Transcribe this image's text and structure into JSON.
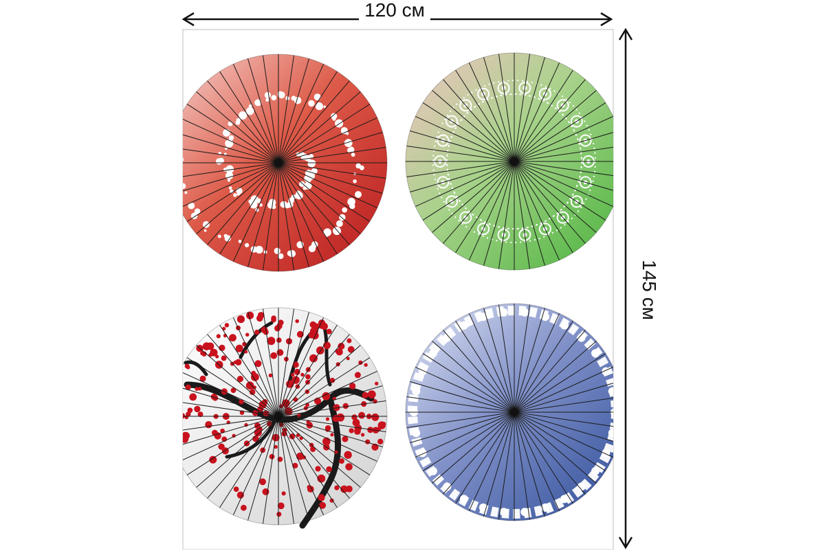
{
  "dimensions": {
    "width_label": "120 см",
    "height_label": "145 см"
  },
  "panels": [
    {
      "name": "red-umbrella",
      "pattern": "dots",
      "colors": {
        "light": "#f6d3cf",
        "mid": "#dd5a48",
        "dark": "#b8191c"
      }
    },
    {
      "name": "green-umbrella",
      "pattern": "floral-ring",
      "colors": {
        "light": "#f3c4c4",
        "mid": "#a6d289",
        "dark": "#49b33c"
      }
    },
    {
      "name": "sakura-umbrella",
      "pattern": "cherry-blossom",
      "colors": {
        "light": "#ffffff",
        "mid": "#ececec",
        "dark": "#d0d0d0",
        "blossom": "#c8121d",
        "branch": "#1a1a1a"
      }
    },
    {
      "name": "blue-umbrella",
      "pattern": "floral-border",
      "colors": {
        "light": "#e3e7f6",
        "mid": "#8292c9",
        "dark": "#2f4e9a"
      }
    }
  ],
  "colors": {
    "rib": "#1a1a1a",
    "frame": "#c8c8c8",
    "arrow": "#111111"
  }
}
